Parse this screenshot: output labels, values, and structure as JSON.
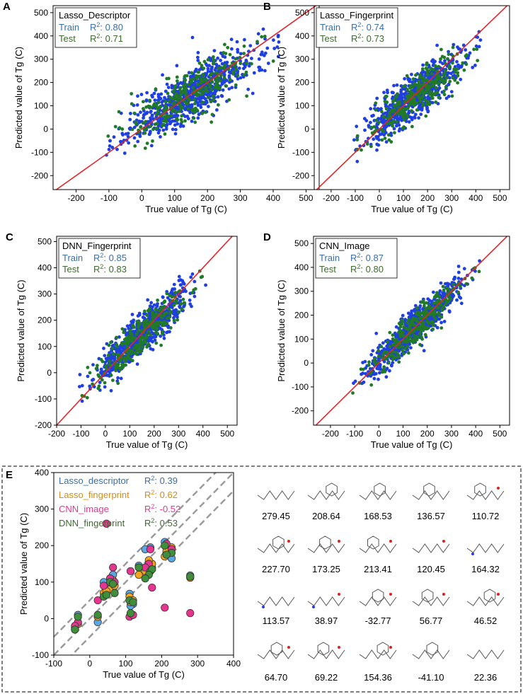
{
  "colors": {
    "train": "#1f3fe0",
    "test": "#217a26",
    "diag": "#e0262b",
    "train_label": "#3a6ea8",
    "test_label": "#3d6b2e"
  },
  "chart_data": [
    {
      "panel": "A",
      "type": "scatter",
      "title": "Lasso_Descriptor",
      "xlabel": "True value of Tg (C)",
      "ylabel": "Predicted value of Tg (C)",
      "xlim": [
        -270,
        540
      ],
      "ylim": [
        -260,
        530
      ],
      "xticks": [
        -200,
        -100,
        0,
        100,
        200,
        300,
        400,
        500
      ],
      "yticks": [
        -200,
        -100,
        0,
        100,
        200,
        300,
        400,
        500
      ],
      "series": [
        {
          "name": "Train",
          "label": "Train",
          "r2_text": "R",
          "r2_value": ": 0.80",
          "spread": 52,
          "slope": 0.8,
          "intercept": 30,
          "n": 720,
          "seed": 11
        },
        {
          "name": "Test",
          "label": "Test",
          "r2_text": "R",
          "r2_value": ": 0.71",
          "spread": 55,
          "slope": 0.8,
          "intercept": 30,
          "n": 260,
          "seed": 12
        }
      ]
    },
    {
      "panel": "B",
      "type": "scatter",
      "title": "Lasso_Fingerprint",
      "xlabel": "True value of Tg (C)",
      "ylabel": "Predicted value of Tg (C)",
      "xlim": [
        -270,
        540
      ],
      "ylim": [
        -260,
        530
      ],
      "xticks": [
        -200,
        -100,
        0,
        100,
        200,
        300,
        400,
        500
      ],
      "yticks": [
        -200,
        -100,
        0,
        100,
        200,
        300,
        400,
        500
      ],
      "series": [
        {
          "name": "Train",
          "label": "Train",
          "r2_text": "R",
          "r2_value": ": 0.74",
          "spread": 48,
          "slope": 0.78,
          "intercept": 28,
          "n": 720,
          "seed": 21
        },
        {
          "name": "Test",
          "label": "Test",
          "r2_text": "R",
          "r2_value": ": 0.73",
          "spread": 45,
          "slope": 0.78,
          "intercept": 28,
          "n": 260,
          "seed": 22
        }
      ]
    },
    {
      "panel": "C",
      "type": "scatter",
      "title": "DNN_Fingerprint",
      "xlabel": "True value of Tg (C)",
      "ylabel": "Predicted value of Tg (C)",
      "xlim": [
        -200,
        540
      ],
      "ylim": [
        -200,
        520
      ],
      "xticks": [
        -200,
        -100,
        0,
        100,
        200,
        300,
        400,
        500
      ],
      "yticks": [
        -200,
        -100,
        0,
        100,
        200,
        300,
        400,
        500
      ],
      "series": [
        {
          "name": "Train",
          "label": "Train",
          "r2_text": "R",
          "r2_value": ": 0.85",
          "spread": 38,
          "slope": 0.83,
          "intercept": 22,
          "n": 720,
          "seed": 31
        },
        {
          "name": "Test",
          "label": "Test",
          "r2_text": "R",
          "r2_value": ": 0.83",
          "spread": 36,
          "slope": 0.83,
          "intercept": 22,
          "n": 260,
          "seed": 32
        }
      ]
    },
    {
      "panel": "D",
      "type": "scatter",
      "title": "CNN_Image",
      "xlabel": "True value of Tg (C)",
      "ylabel": "Predicted value of Tg (C)",
      "xlim": [
        -270,
        540
      ],
      "ylim": [
        -260,
        530
      ],
      "xticks": [
        -200,
        -100,
        0,
        100,
        200,
        300,
        400,
        500
      ],
      "yticks": [
        -200,
        -100,
        0,
        100,
        200,
        300,
        400,
        500
      ],
      "series": [
        {
          "name": "Train",
          "label": "Train",
          "r2_text": "R",
          "r2_value": ": 0.87",
          "spread": 36,
          "slope": 0.95,
          "intercept": 8,
          "n": 720,
          "seed": 41
        },
        {
          "name": "Test",
          "label": "Test",
          "r2_text": "R",
          "r2_value": ": 0.80",
          "spread": 40,
          "slope": 0.95,
          "intercept": 8,
          "n": 260,
          "seed": 42
        }
      ]
    },
    {
      "panel": "E",
      "type": "scatter",
      "title": "",
      "xlabel": "True value of Tg (C)",
      "ylabel": "Predicted value of Tg (C)",
      "xlim": [
        -100,
        400
      ],
      "ylim": [
        -100,
        400
      ],
      "xticks": [
        -100,
        0,
        100,
        200,
        300,
        400
      ],
      "yticks": [
        -100,
        0,
        100,
        200,
        300,
        400
      ],
      "band": 50,
      "true_values": [
        279.45,
        208.64,
        168.53,
        136.57,
        110.72,
        227.7,
        173.25,
        213.41,
        120.45,
        164.32,
        113.57,
        38.97,
        -32.77,
        56.77,
        46.52,
        64.7,
        69.22,
        154.36,
        -41.1,
        22.36
      ],
      "series": [
        {
          "name": "Lasso_descriptor",
          "color": "#5aa7e6",
          "label_color": "#3a6ea8",
          "r2_value": ": 0.39",
          "preds": [
            118,
            210,
            195,
            145,
            68,
            165,
            140,
            180,
            40,
            130,
            35,
            100,
            10,
            110,
            85,
            120,
            70,
            190,
            -30,
            -10
          ]
        },
        {
          "name": "Lasso_fingerprint",
          "color": "#f2a51e",
          "label_color": "#d48d10",
          "r2_value": ": 0.62",
          "preds": [
            112,
            170,
            150,
            120,
            60,
            195,
            150,
            185,
            50,
            160,
            45,
            70,
            -15,
            80,
            75,
            105,
            90,
            130,
            -25,
            5
          ]
        },
        {
          "name": "CNN_image",
          "color": "#e5368f",
          "label_color": "#e5368f",
          "r2_value": ": -0.52",
          "preds": [
            15,
            30,
            190,
            140,
            5,
            190,
            85,
            205,
            10,
            150,
            130,
            90,
            -10,
            110,
            260,
            140,
            100,
            140,
            -20,
            50
          ]
        },
        {
          "name": "DNN_fingerprint",
          "color": "#3f8f3a",
          "label_color": "#3d6b2e",
          "r2_value": ": 0.53",
          "preds": [
            115,
            200,
            130,
            140,
            50,
            180,
            135,
            175,
            45,
            120,
            15,
            60,
            5,
            100,
            65,
            95,
            70,
            110,
            -30,
            10
          ]
        }
      ],
      "r2_label": "R"
    }
  ],
  "panel_letters": {
    "A": "A",
    "B": "B",
    "C": "C",
    "D": "D",
    "E": "E"
  },
  "molecules": [
    {
      "value": "279.45"
    },
    {
      "value": "208.64"
    },
    {
      "value": "168.53"
    },
    {
      "value": "136.57"
    },
    {
      "value": "110.72"
    },
    {
      "value": "227.70"
    },
    {
      "value": "173.25"
    },
    {
      "value": "213.41"
    },
    {
      "value": "120.45"
    },
    {
      "value": "164.32"
    },
    {
      "value": "113.57"
    },
    {
      "value": "38.97"
    },
    {
      "value": "-32.77"
    },
    {
      "value": "56.77"
    },
    {
      "value": "46.52"
    },
    {
      "value": "64.70"
    },
    {
      "value": "69.22"
    },
    {
      "value": "154.36"
    },
    {
      "value": "-41.10"
    },
    {
      "value": "22.36"
    }
  ],
  "r2_superscript": "2"
}
